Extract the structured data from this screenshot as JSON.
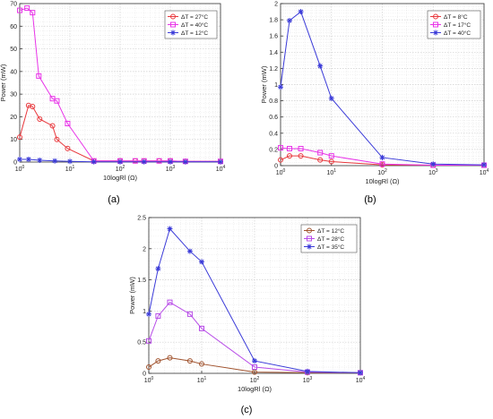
{
  "chart_data": [
    {
      "type": "line",
      "panel_label": "(a)",
      "xlabel": "10logRl (Ω)",
      "ylabel": "Power (mW)",
      "xscale": "log",
      "xlim": [
        1,
        10000
      ],
      "ylim": [
        0,
        70
      ],
      "yticks": [
        0,
        10,
        20,
        30,
        40,
        50,
        60,
        70
      ],
      "grid": true,
      "legend_position": "top-right",
      "series": [
        {
          "name": "ΔT = 27°C",
          "color": "#e8383d",
          "marker": "circle",
          "x": [
            1,
            1.5,
            1.8,
            2.5,
            4.5,
            5.5,
            9,
            30,
            100,
            200,
            300,
            600,
            1000,
            2000,
            10000
          ],
          "y": [
            11,
            25,
            24.5,
            19,
            16,
            10,
            6,
            0.5,
            0.5,
            0.5,
            0.5,
            0.5,
            0.5,
            0.3,
            0.3
          ]
        },
        {
          "name": "ΔT = 40°C",
          "color": "#e834e8",
          "marker": "square",
          "x": [
            1,
            1.4,
            1.8,
            2.4,
            4.5,
            5.5,
            9,
            30,
            100,
            200,
            300,
            600,
            1000,
            2000,
            10000
          ],
          "y": [
            67,
            68,
            66,
            38,
            28,
            27,
            17,
            0.5,
            0.5,
            0.5,
            0.5,
            0.5,
            0.5,
            0.3,
            0.3
          ]
        },
        {
          "name": "ΔT = 12°C",
          "color": "#3a3ad8",
          "marker": "asterisk",
          "x": [
            1,
            1.5,
            2.5,
            5,
            10,
            30,
            100,
            300,
            1000,
            2000,
            10000
          ],
          "y": [
            1.2,
            1.2,
            0.8,
            0.5,
            0.3,
            0.1,
            0.1,
            0.1,
            0.1,
            0.1,
            0.1
          ]
        }
      ]
    },
    {
      "type": "line",
      "panel_label": "(b)",
      "xlabel": "10logRl (Ω)",
      "ylabel": "Power (mW)",
      "xscale": "log",
      "xlim": [
        1,
        10000
      ],
      "ylim": [
        0,
        2
      ],
      "yticks": [
        0,
        0.2,
        0.4,
        0.6,
        0.8,
        1,
        1.2,
        1.4,
        1.6,
        1.8,
        2
      ],
      "grid": true,
      "legend_position": "top-right",
      "series": [
        {
          "name": "ΔT = 8°C",
          "color": "#e8383d",
          "marker": "circle",
          "x": [
            1,
            1.5,
            2.5,
            6,
            10,
            100,
            1000,
            10000
          ],
          "y": [
            0.07,
            0.12,
            0.12,
            0.07,
            0.05,
            0.01,
            0.005,
            0.005
          ]
        },
        {
          "name": "ΔT = 17°C",
          "color": "#e834e8",
          "marker": "square",
          "x": [
            1,
            1.5,
            2.5,
            6,
            10,
            100,
            1000,
            10000
          ],
          "y": [
            0.22,
            0.21,
            0.21,
            0.16,
            0.12,
            0.02,
            0.005,
            0.005
          ]
        },
        {
          "name": "ΔT = 40°C",
          "color": "#3a3ad8",
          "marker": "asterisk",
          "x": [
            1,
            1.5,
            2.5,
            6,
            10,
            100,
            1000,
            10000
          ],
          "y": [
            0.97,
            1.79,
            1.9,
            1.23,
            0.83,
            0.1,
            0.02,
            0.01
          ]
        }
      ]
    },
    {
      "type": "line",
      "panel_label": "(c)",
      "xlabel": "10logRl (Ω)",
      "ylabel": "Power (mW)",
      "xscale": "log",
      "xlim": [
        1,
        10000
      ],
      "ylim": [
        0,
        2.5
      ],
      "yticks": [
        0,
        0.5,
        1,
        1.5,
        2,
        2.5
      ],
      "grid": true,
      "legend_position": "top-right",
      "series": [
        {
          "name": "ΔT = 12°C",
          "color": "#a0522d",
          "marker": "circle",
          "x": [
            1,
            1.5,
            2.5,
            6,
            10,
            100,
            1000,
            10000
          ],
          "y": [
            0.1,
            0.2,
            0.25,
            0.2,
            0.15,
            0.02,
            0.01,
            0.01
          ]
        },
        {
          "name": "ΔT = 28°C",
          "color": "#b84ce8",
          "marker": "square",
          "x": [
            1,
            1.5,
            2.5,
            6,
            10,
            100,
            1000,
            10000
          ],
          "y": [
            0.52,
            0.92,
            1.14,
            0.95,
            0.72,
            0.1,
            0.02,
            0.01
          ]
        },
        {
          "name": "ΔT = 35°C",
          "color": "#3a3ad8",
          "marker": "asterisk",
          "x": [
            1,
            1.5,
            2.5,
            6,
            10,
            100,
            1000,
            10000
          ],
          "y": [
            0.95,
            1.68,
            2.32,
            1.96,
            1.79,
            0.2,
            0.03,
            0.01
          ]
        }
      ]
    }
  ]
}
